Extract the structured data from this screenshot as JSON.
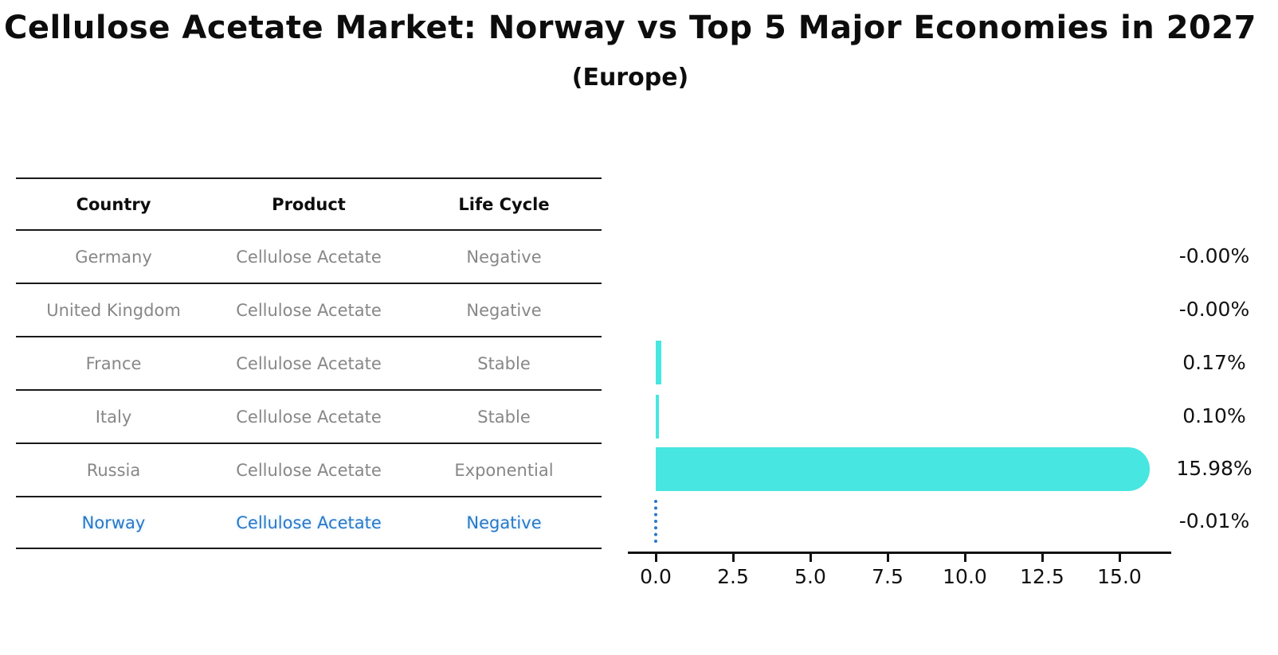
{
  "title": "Cellulose Acetate Market: Norway vs Top 5 Major Economies in 2027",
  "subtitle": "(Europe)",
  "table": {
    "headers": [
      "Country",
      "Product",
      "Life Cycle"
    ],
    "rows": [
      {
        "country": "Germany",
        "product": "Cellulose Acetate",
        "life_cycle": "Negative"
      },
      {
        "country": "United Kingdom",
        "product": "Cellulose Acetate",
        "life_cycle": "Negative"
      },
      {
        "country": "France",
        "product": "Cellulose Acetate",
        "life_cycle": "Stable"
      },
      {
        "country": "Italy",
        "product": "Cellulose Acetate",
        "life_cycle": "Stable"
      },
      {
        "country": "Russia",
        "product": "Cellulose Acetate",
        "life_cycle": "Exponential"
      },
      {
        "country": "Norway",
        "product": "Cellulose Acetate",
        "life_cycle": "Negative"
      }
    ],
    "highlighted_row": "Norway"
  },
  "chart_data": {
    "type": "bar",
    "orientation": "horizontal",
    "title": "Cellulose Acetate Market: Norway vs Top 5 Major Economies in 2027 (Europe)",
    "categories": [
      "Germany",
      "United Kingdom",
      "France",
      "Italy",
      "Russia",
      "Norway"
    ],
    "values": [
      -0.0,
      -0.0,
      0.17,
      0.1,
      15.98,
      -0.01
    ],
    "value_labels": [
      "-0.00%",
      "-0.00%",
      "0.17%",
      "0.10%",
      "15.98%",
      "-0.01%"
    ],
    "unit": "%",
    "x_ticks": [
      "0.0",
      "2.5",
      "5.0",
      "7.5",
      "10.0",
      "12.5",
      "15.0"
    ],
    "x_tick_values": [
      0.0,
      2.5,
      5.0,
      7.5,
      10.0,
      12.5,
      15.0
    ],
    "xlim": [
      -0.9,
      16.7
    ],
    "grid": false,
    "legend": false,
    "bar_color": "#48e6e0",
    "highlight_color": "#2878c8",
    "highlighted_category": "Norway",
    "norway_marker_style": "dotted-outline-at-zero"
  },
  "colors": {
    "background": "#ffffff",
    "text_primary": "#111111",
    "table_text_muted": "#878787",
    "highlight_blue": "#2878c8",
    "bar_cyan": "#48e6e0"
  }
}
